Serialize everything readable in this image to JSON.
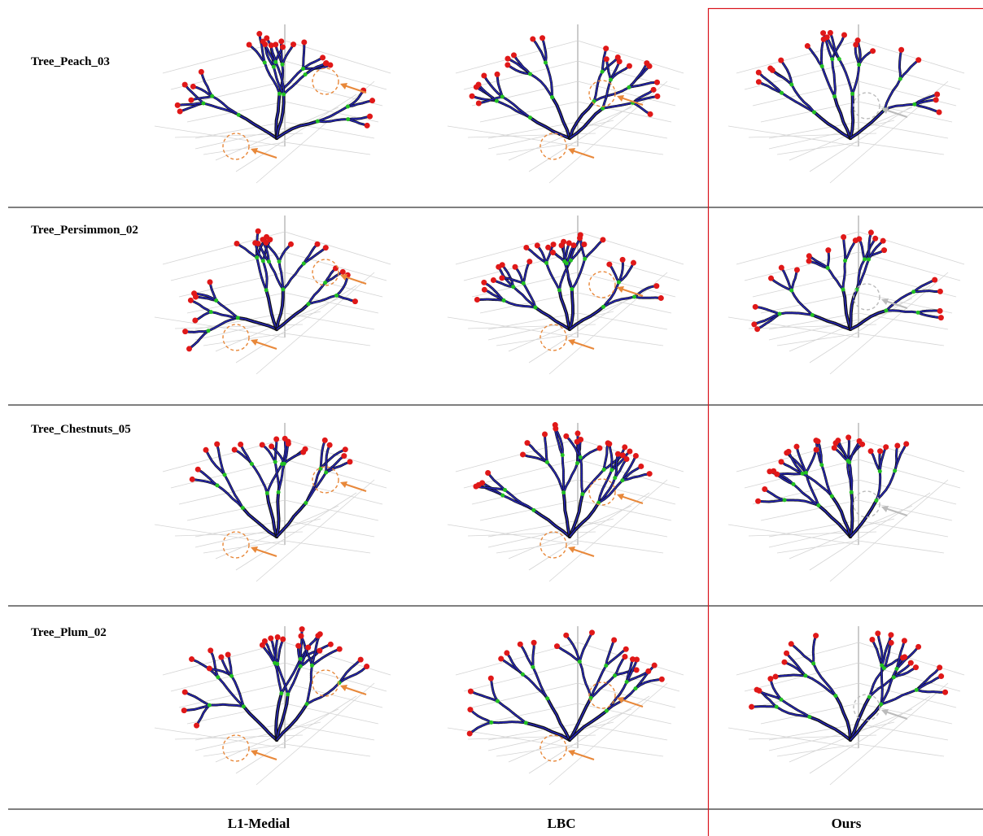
{
  "figure": {
    "rows": [
      "Tree_Peach_03",
      "Tree_Persimmon_02",
      "Tree_Chestnuts_05",
      "Tree_Plum_02"
    ],
    "columns": [
      "L1-Medial",
      "LBC",
      "Ours"
    ]
  }
}
